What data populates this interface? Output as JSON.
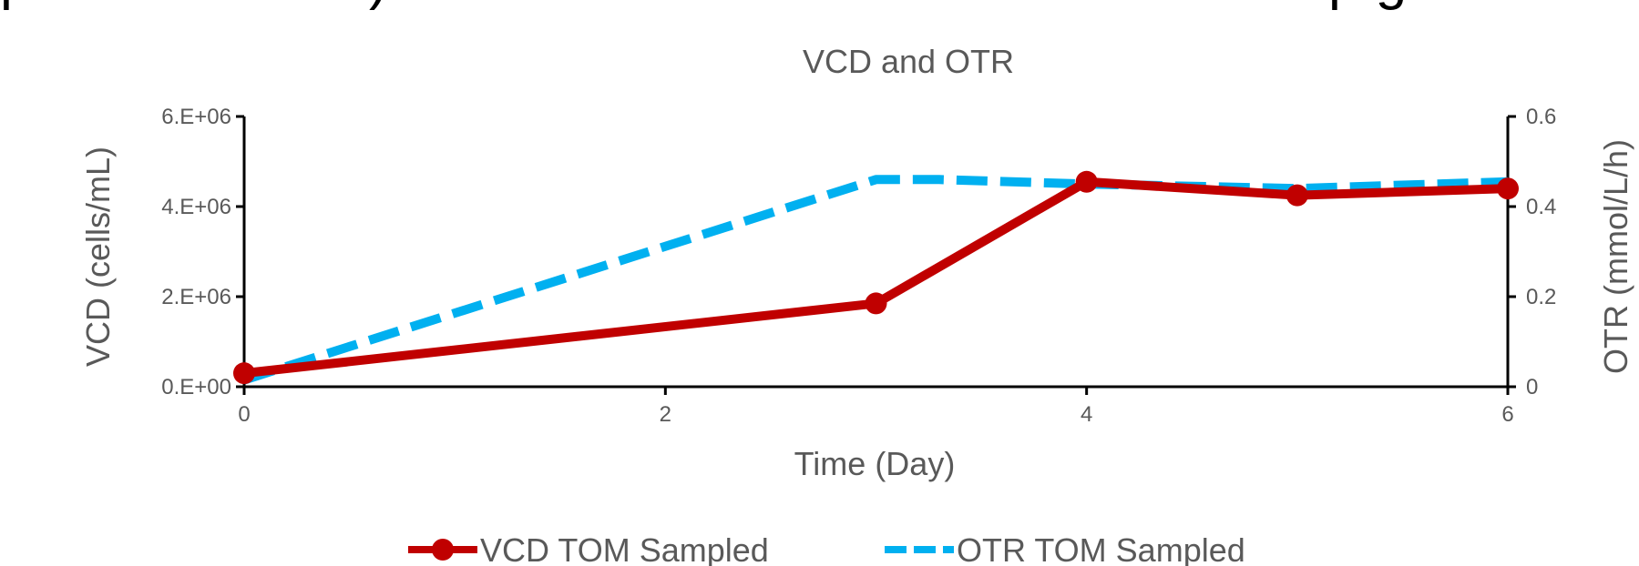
{
  "header": {
    "fragment_left": "p",
    "fragment_mid": ")",
    "fragment_right": "p g"
  },
  "colors": {
    "vcd": "#c00000",
    "otr": "#00b0f0",
    "axis": "#000000",
    "text": "#595959"
  },
  "chart_data": {
    "type": "line",
    "title": "VCD and OTR",
    "xlabel": "Time (Day)",
    "ylabel": "VCD (cells/mL)",
    "y2label": "OTR (mmol/L/h)",
    "xlim": [
      0,
      6
    ],
    "ylim": [
      0,
      6000000
    ],
    "y2lim": [
      0,
      0.6
    ],
    "xticks": [
      "0",
      "2",
      "4",
      "6"
    ],
    "yticks": [
      "0.E+00",
      "2.E+06",
      "4.E+06",
      "6.E+06"
    ],
    "y2ticks": [
      "0",
      "0.2",
      "0.4",
      "0.6"
    ],
    "grid": false,
    "legend_position": "bottom",
    "series": [
      {
        "name": "VCD TOM Sampled",
        "axis": "left",
        "style": "solid-markers",
        "x": [
          0,
          3,
          4,
          5,
          6
        ],
        "y": [
          300000,
          1850000,
          4550000,
          4250000,
          4400000
        ]
      },
      {
        "name": "OTR TOM Sampled",
        "axis": "right",
        "style": "dashed",
        "x": [
          0,
          3,
          3.3,
          4,
          5,
          6
        ],
        "y": [
          0.015,
          0.46,
          0.46,
          0.45,
          0.44,
          0.455
        ]
      }
    ]
  }
}
